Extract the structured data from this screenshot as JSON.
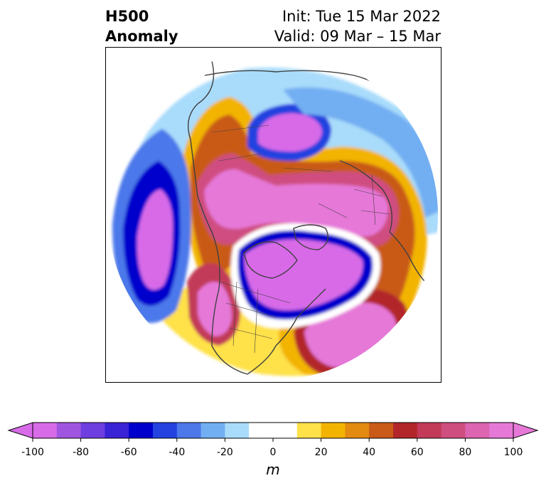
{
  "header": {
    "variable": "H500",
    "field": "Anomaly",
    "init_label": "Init: Tue 15 Mar 2022",
    "valid_label": "Valid: 09 Mar – 15 Mar"
  },
  "colorbar": {
    "unit": "m",
    "tick_labels": [
      "-100",
      "-80",
      "-60",
      "-40",
      "-20",
      "0",
      "20",
      "40",
      "60",
      "80",
      "100"
    ],
    "levels": [
      -100,
      -90,
      -80,
      -70,
      -60,
      -50,
      -40,
      -30,
      -20,
      -10,
      10,
      20,
      30,
      40,
      50,
      60,
      70,
      80,
      90,
      100
    ],
    "colors": [
      "#d86be8",
      "#a055e0",
      "#6e3ee0",
      "#3a22d6",
      "#0000cc",
      "#2342e0",
      "#4c78ea",
      "#72aef2",
      "#a9dcfb",
      "#ffffff",
      "#ffe14a",
      "#f2b400",
      "#e38a10",
      "#c95a18",
      "#b2262a",
      "#c23a58",
      "#cf4e80",
      "#dc64b0",
      "#e678d8"
    ],
    "extend": "both"
  },
  "map": {
    "projection": "polar-stereographic",
    "colors": {
      "coast": "#404040",
      "deep_negative": "#d86be8",
      "deep_positive": "#e678d8"
    }
  }
}
